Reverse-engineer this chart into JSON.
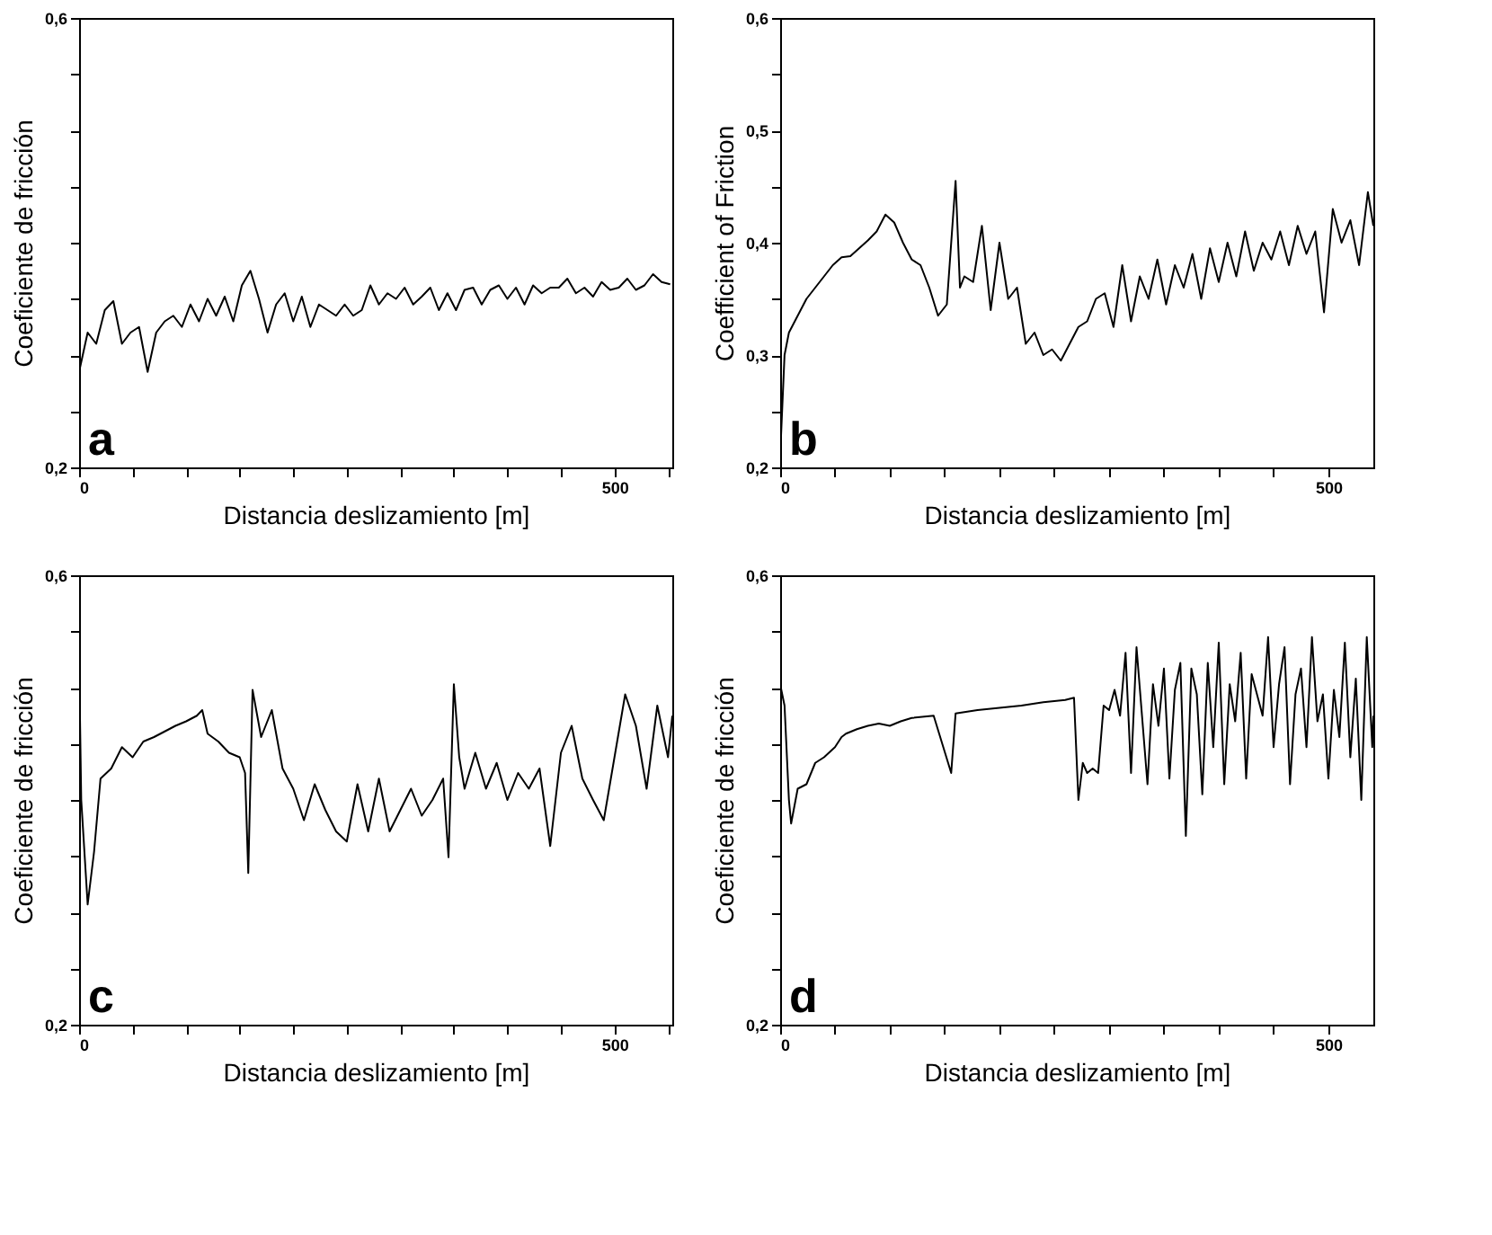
{
  "chart_data": [
    {
      "type": "line",
      "xlabel": "Distancia deslizamiento [m]",
      "ylabel": "Coeficiente de fricción",
      "annotations": [
        "a"
      ],
      "color": "#000000",
      "xlim": [
        0,
        554
      ],
      "ylim": [
        0.2,
        0.6
      ],
      "xticks": [
        0,
        {
          "value": 50,
          "label": null
        },
        {
          "value": 100,
          "label": null
        },
        {
          "value": 150,
          "label": null
        },
        {
          "value": 200,
          "label": null
        },
        {
          "value": 250,
          "label": null
        },
        {
          "value": 300,
          "label": null
        },
        {
          "value": 350,
          "label": null
        },
        {
          "value": 400,
          "label": null
        },
        {
          "value": 450,
          "label": null
        },
        500,
        {
          "value": 550,
          "label": null
        }
      ],
      "yticks": [
        {
          "value": 0.2,
          "label": "0,2"
        },
        {
          "value": 0.25,
          "label": null
        },
        {
          "value": 0.3,
          "label": null
        },
        {
          "value": 0.35,
          "label": null
        },
        {
          "value": 0.4,
          "label": null
        },
        {
          "value": 0.45,
          "label": null
        },
        {
          "value": 0.5,
          "label": null
        },
        {
          "value": 0.55,
          "label": null
        },
        {
          "value": 0.6,
          "label": "0,6"
        }
      ],
      "x": [
        0,
        8,
        16,
        24,
        32,
        40,
        48,
        56,
        64,
        72,
        80,
        88,
        96,
        104,
        112,
        120,
        128,
        136,
        144,
        152,
        160,
        168,
        176,
        184,
        192,
        200,
        208,
        216,
        224,
        232,
        240,
        248,
        256,
        264,
        272,
        280,
        288,
        296,
        304,
        312,
        320,
        328,
        336,
        344,
        352,
        360,
        368,
        376,
        384,
        392,
        400,
        408,
        416,
        424,
        432,
        440,
        448,
        456,
        464,
        472,
        480,
        488,
        496,
        504,
        512,
        520,
        528,
        536,
        544,
        552
      ],
      "values": [
        0.285,
        0.32,
        0.31,
        0.34,
        0.348,
        0.31,
        0.32,
        0.325,
        0.285,
        0.32,
        0.33,
        0.335,
        0.325,
        0.345,
        0.33,
        0.35,
        0.335,
        0.352,
        0.33,
        0.362,
        0.375,
        0.35,
        0.32,
        0.345,
        0.355,
        0.33,
        0.352,
        0.325,
        0.345,
        0.34,
        0.335,
        0.345,
        0.335,
        0.34,
        0.362,
        0.345,
        0.355,
        0.35,
        0.36,
        0.345,
        0.352,
        0.36,
        0.34,
        0.355,
        0.34,
        0.358,
        0.36,
        0.345,
        0.358,
        0.362,
        0.35,
        0.36,
        0.345,
        0.362,
        0.355,
        0.36,
        0.36,
        0.368,
        0.355,
        0.36,
        0.352,
        0.365,
        0.358,
        0.36,
        0.368,
        0.358,
        0.362,
        0.372,
        0.365,
        0.363
      ]
    },
    {
      "type": "line",
      "xlabel": "Distancia deslizamiento [m]",
      "ylabel": "Coefficient of Friction",
      "annotations": [
        "b"
      ],
      "color": "#000000",
      "xlim": [
        0,
        541
      ],
      "ylim": [
        0.2,
        0.6
      ],
      "xticks": [
        0,
        {
          "value": 50,
          "label": null
        },
        {
          "value": 100,
          "label": null
        },
        {
          "value": 150,
          "label": null
        },
        {
          "value": 200,
          "label": null
        },
        {
          "value": 250,
          "label": null
        },
        {
          "value": 300,
          "label": null
        },
        {
          "value": 350,
          "label": null
        },
        {
          "value": 400,
          "label": null
        },
        {
          "value": 450,
          "label": null
        },
        500
      ],
      "yticks": [
        {
          "value": 0.2,
          "label": "0,2"
        },
        {
          "value": 0.25,
          "label": null
        },
        {
          "value": 0.3,
          "label": "0,3"
        },
        {
          "value": 0.35,
          "label": null
        },
        {
          "value": 0.4,
          "label": "0,4"
        },
        {
          "value": 0.45,
          "label": null
        },
        {
          "value": 0.5,
          "label": "0,5"
        },
        {
          "value": 0.55,
          "label": null
        },
        {
          "value": 0.6,
          "label": "0,6"
        }
      ],
      "x": [
        0,
        4,
        8,
        16,
        24,
        32,
        40,
        48,
        56,
        64,
        72,
        80,
        88,
        96,
        104,
        112,
        120,
        128,
        136,
        144,
        152,
        160,
        164,
        168,
        176,
        184,
        192,
        200,
        208,
        216,
        224,
        232,
        240,
        248,
        256,
        264,
        272,
        280,
        288,
        296,
        304,
        312,
        320,
        328,
        336,
        344,
        352,
        360,
        368,
        376,
        384,
        392,
        400,
        408,
        416,
        424,
        432,
        440,
        448,
        456,
        464,
        472,
        480,
        488,
        496,
        504,
        512,
        520,
        528,
        536,
        541
      ],
      "values": [
        0.21,
        0.3,
        0.32,
        0.335,
        0.35,
        0.36,
        0.37,
        0.38,
        0.387,
        0.388,
        0.395,
        0.402,
        0.41,
        0.425,
        0.418,
        0.4,
        0.385,
        0.38,
        0.36,
        0.335,
        0.345,
        0.455,
        0.36,
        0.37,
        0.365,
        0.415,
        0.34,
        0.4,
        0.35,
        0.36,
        0.31,
        0.32,
        0.3,
        0.305,
        0.295,
        0.31,
        0.325,
        0.33,
        0.35,
        0.355,
        0.325,
        0.38,
        0.33,
        0.37,
        0.35,
        0.385,
        0.345,
        0.38,
        0.36,
        0.39,
        0.35,
        0.395,
        0.365,
        0.4,
        0.37,
        0.41,
        0.375,
        0.4,
        0.385,
        0.41,
        0.38,
        0.415,
        0.39,
        0.41,
        0.338,
        0.43,
        0.4,
        0.42,
        0.38,
        0.445,
        0.415
      ]
    },
    {
      "type": "line",
      "xlabel": "Distancia deslizamiento [m]",
      "ylabel": "Coeficiente de fricción",
      "annotations": [
        "c"
      ],
      "color": "#000000",
      "xlim": [
        0,
        554
      ],
      "ylim": [
        0.2,
        0.6
      ],
      "xticks": [
        0,
        {
          "value": 50,
          "label": null
        },
        {
          "value": 100,
          "label": null
        },
        {
          "value": 150,
          "label": null
        },
        {
          "value": 200,
          "label": null
        },
        {
          "value": 250,
          "label": null
        },
        {
          "value": 300,
          "label": null
        },
        {
          "value": 350,
          "label": null
        },
        {
          "value": 400,
          "label": null
        },
        {
          "value": 450,
          "label": null
        },
        500,
        {
          "value": 550,
          "label": null
        }
      ],
      "yticks": [
        {
          "value": 0.2,
          "label": "0,2"
        },
        {
          "value": 0.25,
          "label": null
        },
        {
          "value": 0.3,
          "label": null
        },
        {
          "value": 0.35,
          "label": null
        },
        {
          "value": 0.4,
          "label": null
        },
        {
          "value": 0.45,
          "label": null
        },
        {
          "value": 0.5,
          "label": null
        },
        {
          "value": 0.55,
          "label": null
        },
        {
          "value": 0.6,
          "label": "0,6"
        }
      ],
      "x": [
        0,
        2,
        8,
        14,
        20,
        30,
        40,
        50,
        60,
        70,
        80,
        90,
        100,
        110,
        115,
        120,
        130,
        140,
        150,
        155,
        158,
        162,
        170,
        180,
        190,
        200,
        210,
        220,
        230,
        240,
        250,
        260,
        270,
        280,
        290,
        300,
        310,
        320,
        330,
        340,
        345,
        350,
        355,
        360,
        370,
        380,
        390,
        400,
        410,
        420,
        430,
        440,
        450,
        460,
        470,
        480,
        490,
        500,
        510,
        520,
        530,
        540,
        550,
        554
      ],
      "values": [
        0.526,
        0.4,
        0.307,
        0.354,
        0.419,
        0.428,
        0.447,
        0.438,
        0.452,
        0.456,
        0.461,
        0.466,
        0.47,
        0.475,
        0.48,
        0.459,
        0.452,
        0.442,
        0.438,
        0.424,
        0.335,
        0.498,
        0.456,
        0.48,
        0.428,
        0.41,
        0.382,
        0.414,
        0.391,
        0.372,
        0.363,
        0.414,
        0.372,
        0.419,
        0.372,
        0.391,
        0.41,
        0.386,
        0.4,
        0.419,
        0.349,
        0.503,
        0.438,
        0.41,
        0.442,
        0.41,
        0.433,
        0.4,
        0.424,
        0.41,
        0.428,
        0.359,
        0.442,
        0.466,
        0.419,
        0.4,
        0.382,
        0.438,
        0.494,
        0.466,
        0.41,
        0.484,
        0.438,
        0.475
      ]
    },
    {
      "type": "line",
      "xlabel": "Distancia deslizamiento [m]",
      "ylabel": "Coeficiente de fricción",
      "annotations": [
        "d"
      ],
      "color": "#000000",
      "xlim": [
        0,
        541
      ],
      "ylim": [
        0.2,
        0.6
      ],
      "xticks": [
        0,
        {
          "value": 50,
          "label": null
        },
        {
          "value": 100,
          "label": null
        },
        {
          "value": 150,
          "label": null
        },
        {
          "value": 200,
          "label": null
        },
        {
          "value": 250,
          "label": null
        },
        {
          "value": 300,
          "label": null
        },
        {
          "value": 350,
          "label": null
        },
        {
          "value": 400,
          "label": null
        },
        {
          "value": 450,
          "label": null
        },
        500
      ],
      "yticks": [
        {
          "value": 0.2,
          "label": "0,2"
        },
        {
          "value": 0.25,
          "label": null
        },
        {
          "value": 0.3,
          "label": null
        },
        {
          "value": 0.35,
          "label": null
        },
        {
          "value": 0.4,
          "label": null
        },
        {
          "value": 0.45,
          "label": null
        },
        {
          "value": 0.5,
          "label": null
        },
        {
          "value": 0.55,
          "label": null
        },
        {
          "value": 0.6,
          "label": "0,6"
        }
      ],
      "x": [
        0,
        4,
        8,
        10,
        16,
        24,
        32,
        40,
        50,
        56,
        60,
        70,
        80,
        90,
        100,
        110,
        120,
        140,
        156,
        160,
        180,
        200,
        220,
        240,
        260,
        268,
        272,
        276,
        280,
        285,
        290,
        295,
        300,
        305,
        310,
        315,
        320,
        325,
        330,
        335,
        340,
        345,
        350,
        355,
        360,
        365,
        370,
        375,
        380,
        385,
        390,
        395,
        400,
        405,
        410,
        415,
        420,
        425,
        430,
        440,
        445,
        450,
        455,
        460,
        465,
        470,
        475,
        480,
        485,
        490,
        495,
        500,
        505,
        510,
        515,
        520,
        525,
        530,
        535,
        540,
        541
      ],
      "values": [
        0.503,
        0.484,
        0.4,
        0.379,
        0.41,
        0.414,
        0.433,
        0.438,
        0.447,
        0.456,
        0.459,
        0.463,
        0.466,
        0.468,
        0.466,
        0.47,
        0.473,
        0.475,
        0.424,
        0.477,
        0.48,
        0.482,
        0.484,
        0.487,
        0.489,
        0.491,
        0.4,
        0.433,
        0.424,
        0.428,
        0.424,
        0.484,
        0.48,
        0.498,
        0.475,
        0.531,
        0.424,
        0.536,
        0.475,
        0.414,
        0.503,
        0.466,
        0.517,
        0.419,
        0.498,
        0.522,
        0.368,
        0.517,
        0.494,
        0.405,
        0.522,
        0.447,
        0.54,
        0.414,
        0.503,
        0.47,
        0.531,
        0.419,
        0.512,
        0.475,
        0.545,
        0.447,
        0.503,
        0.536,
        0.414,
        0.494,
        0.517,
        0.447,
        0.545,
        0.47,
        0.494,
        0.419,
        0.498,
        0.456,
        0.54,
        0.438,
        0.508,
        0.4,
        0.545,
        0.447,
        0.475
      ]
    }
  ]
}
